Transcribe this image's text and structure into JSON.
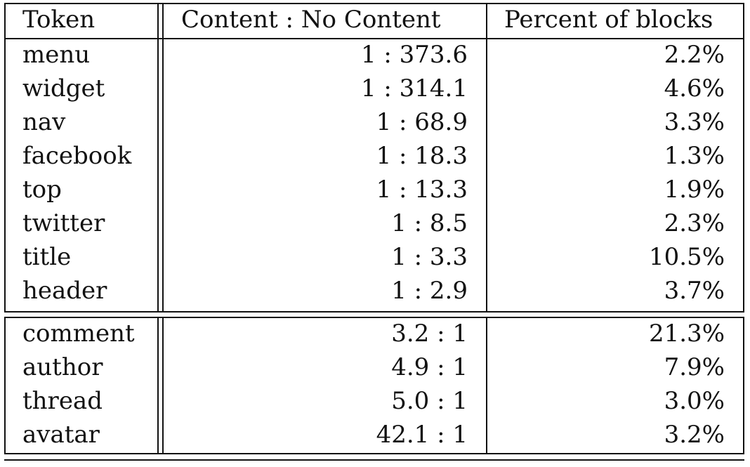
{
  "table": {
    "headers": [
      "Token",
      "Content : No Content",
      "Percent of blocks"
    ],
    "group1": [
      {
        "token": "menu",
        "ratio": "1 : 373.6",
        "percent": "2.2%"
      },
      {
        "token": "widget",
        "ratio": "1 : 314.1",
        "percent": "4.6%"
      },
      {
        "token": "nav",
        "ratio": "1 : 68.9",
        "percent": "3.3%"
      },
      {
        "token": "facebook",
        "ratio": "1 : 18.3",
        "percent": "1.3%"
      },
      {
        "token": "top",
        "ratio": "1 : 13.3",
        "percent": "1.9%"
      },
      {
        "token": "twitter",
        "ratio": "1 : 8.5",
        "percent": "2.3%"
      },
      {
        "token": "title",
        "ratio": "1 : 3.3",
        "percent": "10.5%"
      },
      {
        "token": "header",
        "ratio": "1 : 2.9",
        "percent": "3.7%"
      }
    ],
    "group2": [
      {
        "token": "comment",
        "ratio": "3.2 : 1",
        "percent": "21.3%"
      },
      {
        "token": "author",
        "ratio": "4.9 : 1",
        "percent": "7.9%"
      },
      {
        "token": "thread",
        "ratio": "5.0 : 1",
        "percent": "3.0%"
      },
      {
        "token": "avatar",
        "ratio": "42.1 : 1",
        "percent": "3.2%"
      }
    ]
  }
}
